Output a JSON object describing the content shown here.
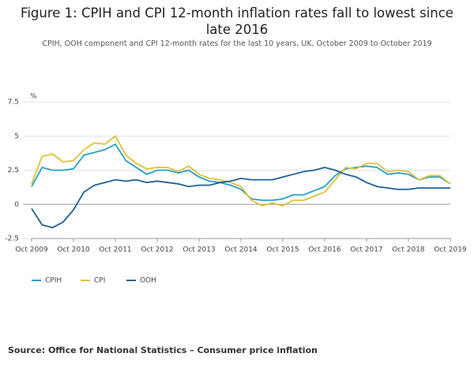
{
  "chart_data": {
    "type": "line",
    "title": "Figure 1: CPIH and CPI 12-month inflation rates fall to lowest since late 2016",
    "subtitle": "CPIH, OOH component and CPI 12-month rates for the last 10 years, UK, October 2009 to October 2019",
    "y_unit": "%",
    "source": "Source: Office for National Statistics – Consumer price inflation",
    "categories": [
      "Oct 2009",
      null,
      null,
      null,
      "Oct 2010",
      null,
      null,
      null,
      "Oct 2011",
      null,
      null,
      null,
      "Oct 2012",
      null,
      null,
      null,
      "Oct 2013",
      null,
      null,
      null,
      "Oct 2014",
      null,
      null,
      null,
      "Oct 2015",
      null,
      null,
      null,
      "Oct 2016",
      null,
      null,
      null,
      "Oct 2017",
      null,
      null,
      null,
      "Oct 2018",
      null,
      null,
      null,
      "Oct 2019"
    ],
    "ylim": [
      -2.5,
      7.5
    ],
    "yticks": [
      -2.5,
      0,
      2.5,
      5,
      7.5
    ],
    "grid": true,
    "legend": "bottom",
    "series": [
      {
        "name": "CPIH",
        "color": "#27a0cc",
        "values": [
          1.3,
          2.7,
          2.5,
          2.5,
          2.6,
          3.6,
          3.8,
          4.0,
          4.4,
          3.2,
          2.7,
          2.2,
          2.5,
          2.5,
          2.3,
          2.5,
          2.0,
          1.7,
          1.6,
          1.4,
          1.1,
          0.4,
          0.3,
          0.3,
          0.4,
          0.7,
          0.7,
          1.0,
          1.3,
          2.1,
          2.6,
          2.7,
          2.8,
          2.7,
          2.2,
          2.3,
          2.2,
          1.8,
          2.0,
          2.0,
          1.5
        ]
      },
      {
        "name": "CPI",
        "color": "#e0c13a",
        "values": [
          1.5,
          3.5,
          3.7,
          3.1,
          3.2,
          4.0,
          4.5,
          4.4,
          5.0,
          3.6,
          3.0,
          2.6,
          2.7,
          2.7,
          2.4,
          2.8,
          2.2,
          1.9,
          1.8,
          1.6,
          1.3,
          0.3,
          -0.1,
          0.1,
          -0.1,
          0.3,
          0.3,
          0.6,
          0.9,
          1.8,
          2.7,
          2.6,
          3.0,
          3.0,
          2.4,
          2.5,
          2.4,
          1.8,
          2.1,
          2.1,
          1.5
        ]
      },
      {
        "name": "OOH",
        "color": "#206095",
        "values": [
          -0.3,
          -1.5,
          -1.7,
          -1.3,
          -0.4,
          0.9,
          1.4,
          1.6,
          1.8,
          1.7,
          1.8,
          1.6,
          1.7,
          1.6,
          1.5,
          1.3,
          1.4,
          1.4,
          1.6,
          1.7,
          1.9,
          1.8,
          1.8,
          1.8,
          2.0,
          2.2,
          2.4,
          2.5,
          2.7,
          2.5,
          2.2,
          2.0,
          1.6,
          1.3,
          1.2,
          1.1,
          1.1,
          1.2,
          1.2,
          1.2,
          1.2
        ]
      }
    ]
  }
}
